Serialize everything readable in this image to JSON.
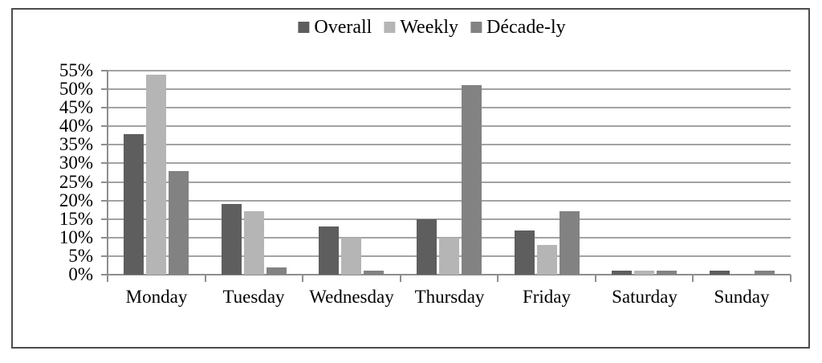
{
  "figure": {
    "background": "#ffffff",
    "border_color": "#4d4d4d"
  },
  "chart_data": {
    "type": "bar",
    "title": "",
    "xlabel": "",
    "ylabel": "",
    "categories": [
      "Monday",
      "Tuesday",
      "Wednesday",
      "Thursday",
      "Friday",
      "Saturday",
      "Sunday"
    ],
    "series": [
      {
        "name": "Overall",
        "color": "#5e5e5e",
        "values": [
          38,
          19,
          13,
          15,
          12,
          1,
          1
        ]
      },
      {
        "name": "Weekly",
        "color": "#b5b5b5",
        "values": [
          54,
          17,
          10,
          10,
          8,
          1,
          0
        ]
      },
      {
        "name": "Décade-ly",
        "color": "#828282",
        "values": [
          28,
          2,
          1,
          51,
          17,
          1,
          1
        ]
      }
    ],
    "ylim": [
      0,
      55
    ],
    "ytick_step": 5,
    "ytick_labels": [
      "0%",
      "5%",
      "10%",
      "15%",
      "20%",
      "25%",
      "30%",
      "35%",
      "40%",
      "45%",
      "50%",
      "55%"
    ],
    "ytick_format": "percent",
    "grid": true,
    "legend_position": "top-center",
    "gridline_color": "#a3a3a3",
    "axis_color": "#8e8e8e",
    "text_color": "#000000"
  }
}
